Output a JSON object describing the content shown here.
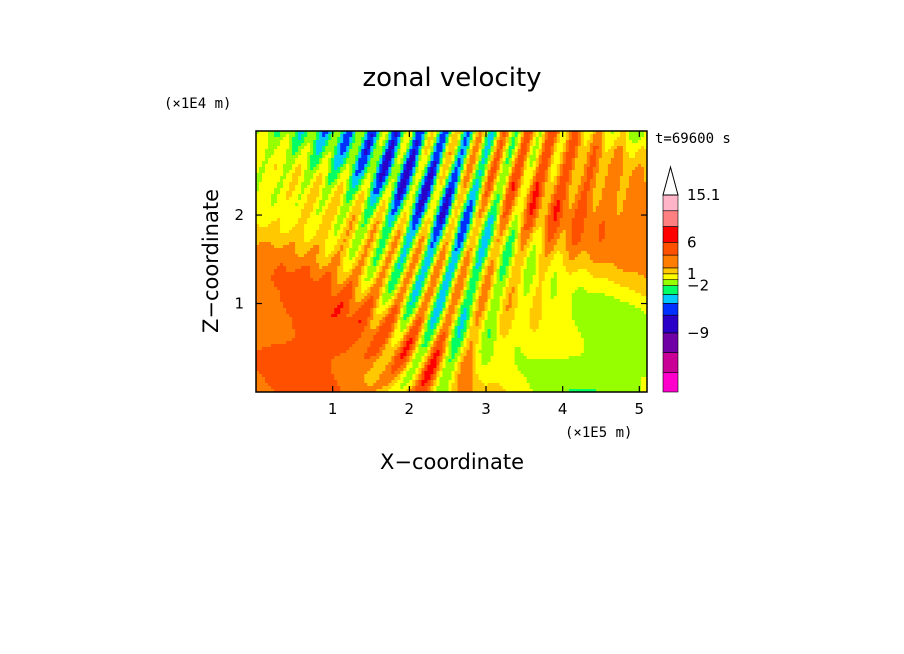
{
  "chart_data": {
    "type": "heatmap",
    "title": "zonal velocity",
    "xlabel": "X−coordinate",
    "ylabel": "Z−coordinate",
    "x_unit_label": "(×1E5 m)",
    "y_unit_label": "(×1E4 m)",
    "time_label": "t=69600 s",
    "xlim": [
      0,
      5.1
    ],
    "ylim": [
      0,
      2.95
    ],
    "x_ticks": [
      {
        "value": 1,
        "label": "1"
      },
      {
        "value": 2,
        "label": "2"
      },
      {
        "value": 3,
        "label": "3"
      },
      {
        "value": 4,
        "label": "4"
      },
      {
        "value": 5,
        "label": "5"
      }
    ],
    "y_ticks": [
      {
        "value": 1,
        "label": "1"
      },
      {
        "value": 2,
        "label": "2"
      }
    ],
    "colorbar": {
      "levels": [
        {
          "color": "#ff00cc"
        },
        {
          "color": "#c80096"
        },
        {
          "color": "#6e00a5"
        },
        {
          "color": "#2a00c8"
        },
        {
          "color": "#0030ff"
        },
        {
          "color": "#00c8ff"
        },
        {
          "color": "#00ff64"
        },
        {
          "color": "#96ff00"
        },
        {
          "color": "#ffff00"
        },
        {
          "color": "#ffc800"
        },
        {
          "color": "#ff7d00"
        },
        {
          "color": "#ff5000"
        },
        {
          "color": "#ff0000"
        },
        {
          "color": "#ff8080"
        },
        {
          "color": "#ffb4c8"
        }
      ],
      "labels": [
        "15.1",
        "6",
        "1",
        "−2",
        "−9"
      ]
    },
    "grid": false,
    "legend": "colorbar-right"
  }
}
